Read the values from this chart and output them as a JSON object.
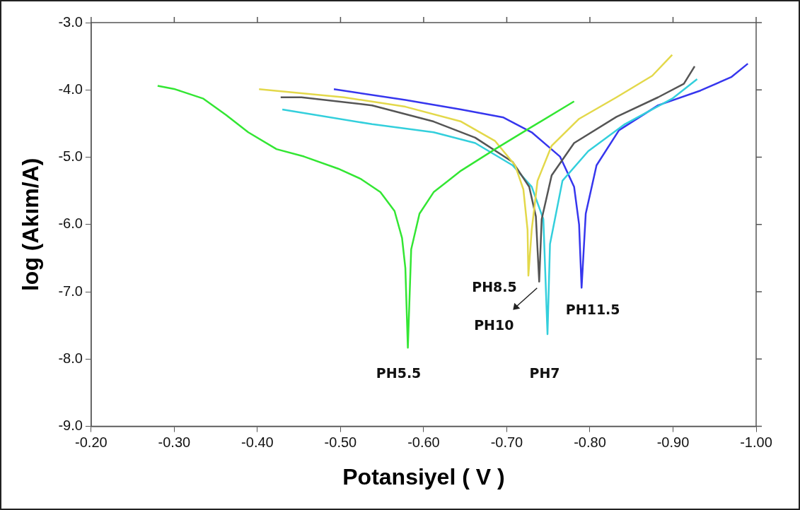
{
  "chart_data": {
    "type": "line",
    "xlabel": "Potansiyel ( V )",
    "ylabel": "log (Akım/A)",
    "xlim": [
      -0.2,
      -1.0
    ],
    "ylim": [
      -9.0,
      -3.0
    ],
    "xticks": [
      {
        "value": -0.2,
        "label": "-0.20"
      },
      {
        "value": -0.3,
        "label": "-0.30"
      },
      {
        "value": -0.4,
        "label": "-0.40"
      },
      {
        "value": -0.5,
        "label": "-0.50"
      },
      {
        "value": -0.6,
        "label": "-0.60"
      },
      {
        "value": -0.7,
        "label": "-0.70"
      },
      {
        "value": -0.8,
        "label": "-0.80"
      },
      {
        "value": -0.9,
        "label": "-0.90"
      },
      {
        "value": -1.0,
        "label": "-1.00"
      }
    ],
    "yticks": [
      {
        "value": -3,
        "label": "-3.0"
      },
      {
        "value": -4,
        "label": "-4.0"
      },
      {
        "value": -5,
        "label": "-5.0"
      },
      {
        "value": -6,
        "label": "-6.0"
      },
      {
        "value": -7,
        "label": "-7.0"
      },
      {
        "value": -8,
        "label": "-8.0"
      },
      {
        "value": -9,
        "label": "-9.0"
      }
    ],
    "grid": false,
    "legend": false,
    "marker": "none",
    "line_style": "solid",
    "series": [
      {
        "name": "PH5.5",
        "color": "#33e633",
        "x": [
          -0.28,
          -0.301,
          -0.335,
          -0.362,
          -0.389,
          -0.423,
          -0.456,
          -0.497,
          -0.524,
          -0.548,
          -0.565,
          -0.574,
          -0.578,
          -0.581,
          -0.585,
          -0.595,
          -0.612,
          -0.645,
          -0.686,
          -0.73,
          -0.781
        ],
        "values": [
          -3.94,
          -3.99,
          -4.13,
          -4.37,
          -4.63,
          -4.88,
          -4.99,
          -5.17,
          -5.32,
          -5.52,
          -5.8,
          -6.2,
          -6.65,
          -7.83,
          -6.37,
          -5.84,
          -5.52,
          -5.2,
          -4.88,
          -4.55,
          -4.17
        ]
      },
      {
        "name": "PH8.5",
        "color": "#e3d84a",
        "x": [
          -0.402,
          -0.504,
          -0.578,
          -0.645,
          -0.686,
          -0.71,
          -0.72,
          -0.725,
          -0.726,
          -0.73,
          -0.737,
          -0.754,
          -0.787,
          -0.832,
          -0.875,
          -0.899
        ],
        "values": [
          -3.99,
          -4.11,
          -4.25,
          -4.47,
          -4.76,
          -5.12,
          -5.48,
          -6.08,
          -6.76,
          -6.08,
          -5.35,
          -4.83,
          -4.43,
          -4.11,
          -3.79,
          -3.48
        ]
      },
      {
        "name": "PH10",
        "color": "#555555",
        "x": [
          -0.428,
          -0.453,
          -0.538,
          -0.612,
          -0.662,
          -0.707,
          -0.727,
          -0.735,
          -0.739,
          -0.742,
          -0.754,
          -0.781,
          -0.832,
          -0.882,
          -0.913,
          -0.926
        ],
        "values": [
          -4.11,
          -4.11,
          -4.23,
          -4.47,
          -4.71,
          -5.07,
          -5.44,
          -5.88,
          -6.85,
          -5.92,
          -5.27,
          -4.79,
          -4.4,
          -4.11,
          -3.91,
          -3.65
        ]
      },
      {
        "name": "PH7",
        "color": "#33cfdc",
        "x": [
          -0.43,
          -0.538,
          -0.612,
          -0.662,
          -0.707,
          -0.73,
          -0.744,
          -0.749,
          -0.752,
          -0.767,
          -0.798,
          -0.842,
          -0.899,
          -0.929
        ],
        "values": [
          -4.29,
          -4.51,
          -4.63,
          -4.79,
          -5.12,
          -5.44,
          -5.92,
          -7.63,
          -6.29,
          -5.35,
          -4.91,
          -4.51,
          -4.13,
          -3.84
        ]
      },
      {
        "name": "PH11.5",
        "color": "#3636ee",
        "x": [
          -0.492,
          -0.578,
          -0.645,
          -0.696,
          -0.73,
          -0.764,
          -0.781,
          -0.787,
          -0.79,
          -0.795,
          -0.808,
          -0.835,
          -0.882,
          -0.933,
          -0.97,
          -0.99
        ],
        "values": [
          -3.99,
          -4.15,
          -4.29,
          -4.41,
          -4.63,
          -4.99,
          -5.44,
          -6.0,
          -6.94,
          -5.84,
          -5.12,
          -4.6,
          -4.23,
          -4.01,
          -3.81,
          -3.61
        ]
      }
    ]
  }
}
